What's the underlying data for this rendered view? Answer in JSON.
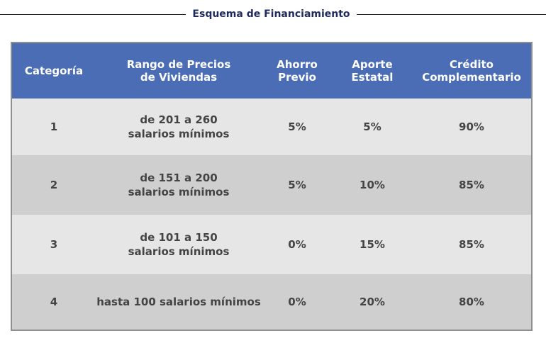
{
  "title": "Esquema de Financiamiento",
  "table": {
    "headers": [
      "Categoría",
      "Rango de Precios\nde Viviendas",
      "Ahorro\nPrevio",
      "Aporte\nEstatal",
      "Crédito\nComplementario"
    ],
    "rows": [
      [
        "1",
        "de 201 a 260\nsalarios mínimos",
        "5%",
        "5%",
        "90%"
      ],
      [
        "2",
        "de 151 a 200\nsalarios mínimos",
        "5%",
        "10%",
        "85%"
      ],
      [
        "3",
        "de 101 a  150\nsalarios mínimos",
        "0%",
        "15%",
        "85%"
      ],
      [
        "4",
        "hasta 100 salarios mínimos",
        "0%",
        "20%",
        "80%"
      ]
    ]
  },
  "colors": {
    "header_bg": "#4a6db5",
    "title_text": "#1f2b5c",
    "row_light": "#e6e6e6",
    "row_dark": "#cfcfcf"
  }
}
